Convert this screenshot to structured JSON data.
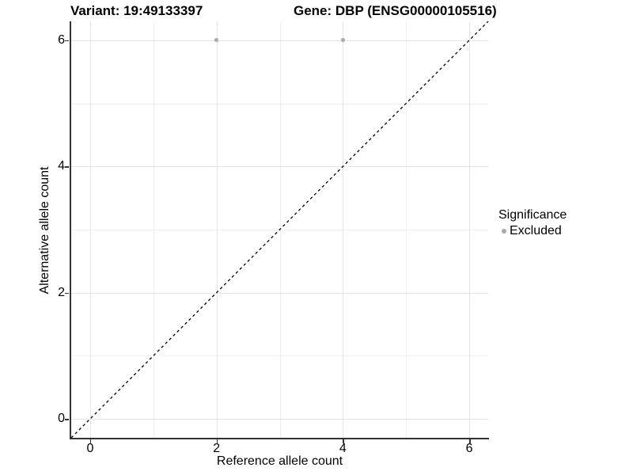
{
  "titles": {
    "variant": "Variant: 19:49133397",
    "gene": "Gene: DBP (ENSG00000105516)"
  },
  "axes": {
    "x_label": "Reference allele count",
    "y_label": "Alternative allele count"
  },
  "legend": {
    "title": "Significance",
    "items": [
      {
        "label": "Excluded",
        "color": "#a9a9a9"
      }
    ]
  },
  "chart_data": {
    "type": "scatter",
    "title": "Variant: 19:49133397 — Gene: DBP (ENSG00000105516)",
    "xlabel": "Reference allele count",
    "ylabel": "Alternative allele count",
    "xlim": [
      -0.3,
      6.3
    ],
    "ylim": [
      -0.3,
      6.3
    ],
    "x_ticks": [
      0,
      2,
      4,
      6
    ],
    "y_ticks": [
      0,
      2,
      4,
      6
    ],
    "x_minor": [
      1,
      3,
      5
    ],
    "y_minor": [
      1,
      3,
      5
    ],
    "grid": true,
    "legend_position": "right",
    "series": [
      {
        "name": "Excluded",
        "points": [
          {
            "x": 2,
            "y": 6
          },
          {
            "x": 4,
            "y": 6
          }
        ]
      }
    ],
    "reference_line": {
      "kind": "identity",
      "style": "dashed",
      "from": [
        -0.3,
        -0.3
      ],
      "to": [
        6.3,
        6.3
      ]
    },
    "colors": {
      "excluded": "#a9a9a9",
      "grid_major": "#e4e4e4",
      "grid_minor": "#f1f1f1",
      "axis": "#333333",
      "reference_line": "#000000"
    }
  }
}
